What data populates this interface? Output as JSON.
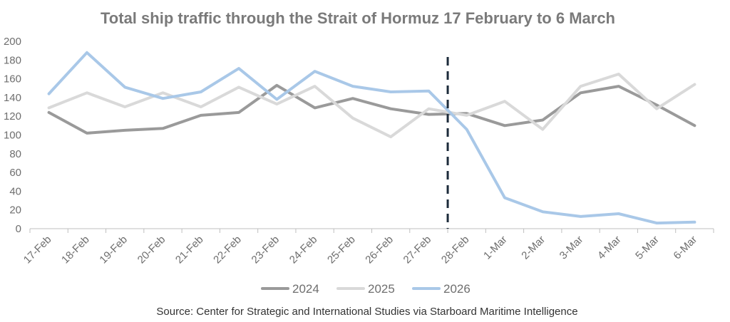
{
  "title": "Total ship traffic through the Strait of Hormuz 17 February to 6 March",
  "source": "Source: Center for Strategic and International Studies via Starboard Maritime Intelligence",
  "chart_data": {
    "type": "line",
    "title": "Total ship traffic through the Strait of Hormuz 17 February to 6 March",
    "xlabel": "",
    "ylabel": "",
    "ylim": [
      0,
      200
    ],
    "yticks": [
      0,
      20,
      40,
      60,
      80,
      100,
      120,
      140,
      160,
      180,
      200
    ],
    "categories": [
      "17-Feb",
      "18-Feb",
      "19-Feb",
      "20-Feb",
      "21-Feb",
      "22-Feb",
      "23-Feb",
      "24-Feb",
      "25-Feb",
      "26-Feb",
      "27-Feb",
      "28-Feb",
      "1-Mar",
      "2-Mar",
      "3-Mar",
      "4-Mar",
      "5-Mar",
      "6-Mar"
    ],
    "series": [
      {
        "name": "2024",
        "color": "#9a9a9a",
        "values": [
          124,
          102,
          105,
          107,
          121,
          124,
          153,
          129,
          139,
          128,
          122,
          123,
          110,
          116,
          145,
          152,
          132,
          110
        ]
      },
      {
        "name": "2025",
        "color": "#d9d9d9",
        "values": [
          129,
          145,
          130,
          145,
          130,
          151,
          133,
          152,
          118,
          98,
          128,
          121,
          136,
          106,
          152,
          165,
          128,
          154
        ]
      },
      {
        "name": "2026",
        "color": "#a9c8e8",
        "values": [
          144,
          188,
          151,
          139,
          146,
          171,
          138,
          168,
          152,
          146,
          147,
          106,
          33,
          18,
          13,
          16,
          6,
          7
        ]
      }
    ],
    "marker": {
      "position": "between 27-Feb and 28-Feb",
      "style": "dashed",
      "color": "#1c2b3a"
    },
    "legend": {
      "placement": "bottom"
    },
    "grid": false
  }
}
